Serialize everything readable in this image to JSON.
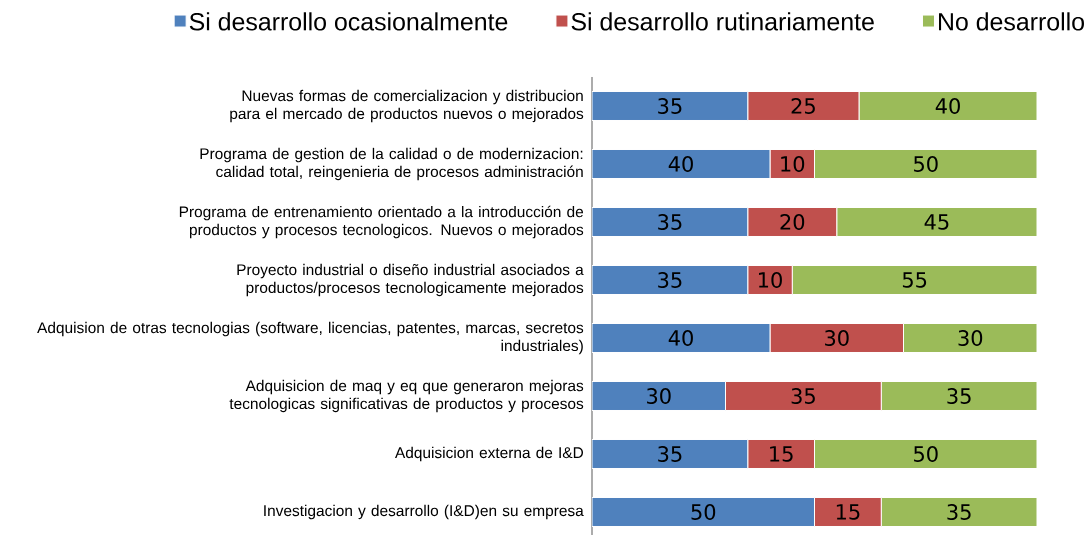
{
  "chart_data": {
    "type": "bar",
    "orientation": "horizontal",
    "stacked": true,
    "data_labels": true,
    "legend": "top",
    "categories": [
      "Nuevas formas de comercializacion y distribucion para el mercado de productos nuevos o mejorados",
      "Programa de gestion de la calidad o de modernizacion: calidad total, reingenieria de procesos administración",
      "Programa de entrenamiento orientado a la introducción de productos y procesos tecnologicos. Nuevos o mejorados",
      "Proyecto industrial o diseño industrial asociados a productos/procesos tecnologicamente mejorados",
      "Adquision de otras tecnologias (software, licencias, patentes, marcas, secretos industriales)",
      "Adquisicion de maq y eq que generaron mejoras tecnologicas significativas de productos y procesos",
      "Adquisicion externa de I&D",
      "Investigacion y desarrollo (I&D)en su empresa"
    ],
    "series": [
      {
        "name": "Si desarrollo ocasionalmente",
        "color": "#4f81bd",
        "values": [
          35,
          40,
          35,
          35,
          40,
          30,
          35,
          50
        ]
      },
      {
        "name": "Si desarrollo rutinariamente",
        "color": "#c0504d",
        "values": [
          25,
          10,
          20,
          10,
          30,
          35,
          15,
          15
        ]
      },
      {
        "name": "No desarrollo",
        "color": "#9bbb59",
        "values": [
          40,
          50,
          45,
          55,
          30,
          35,
          50,
          35
        ]
      }
    ]
  }
}
